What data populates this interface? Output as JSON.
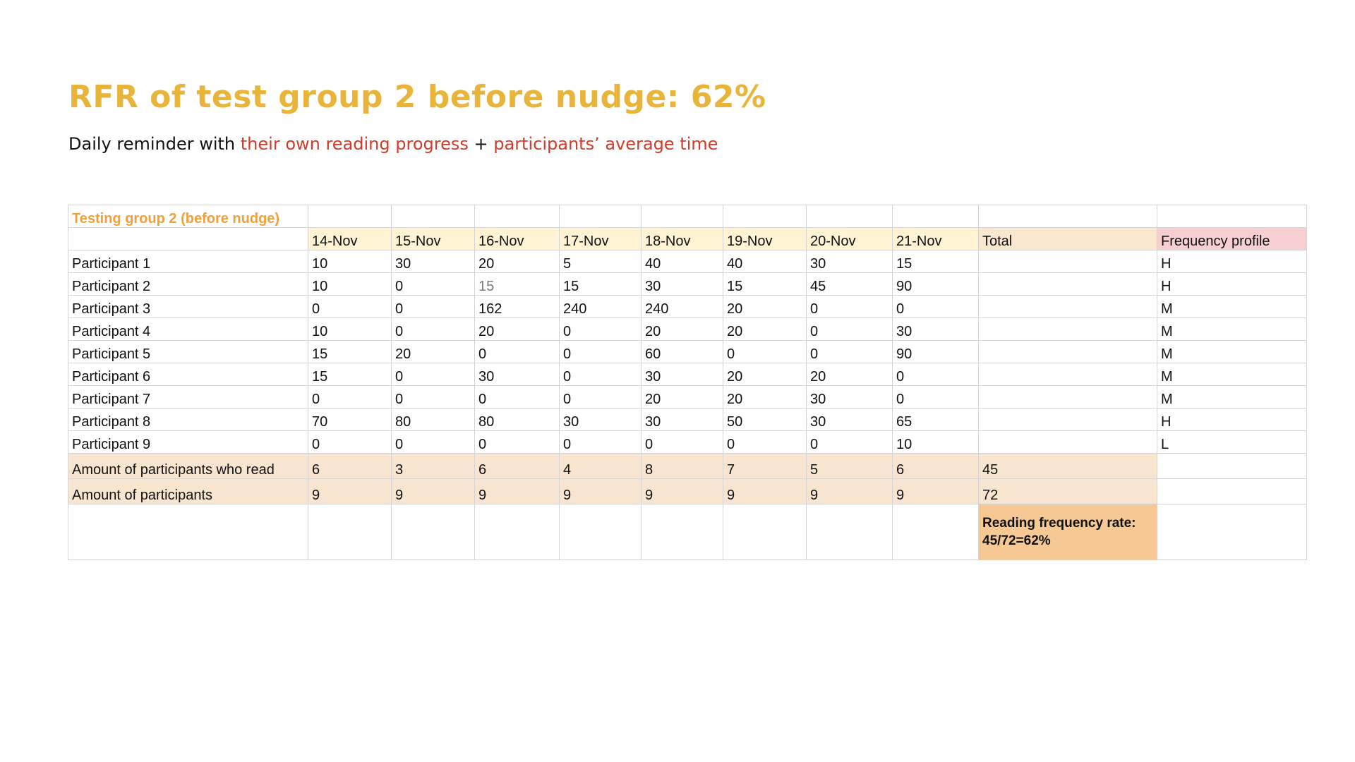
{
  "slide": {
    "title": "RFR of test group 2 before nudge: 62%",
    "subtitle": {
      "prefix": "Daily reminder with ",
      "highlight1": "their own reading progress",
      "middle": " + ",
      "highlight2": "participants’ average time"
    }
  },
  "sheet": {
    "title": "Testing group 2 (before nudge)",
    "headers": {
      "dates": [
        "14-Nov",
        "15-Nov",
        "16-Nov",
        "17-Nov",
        "18-Nov",
        "19-Nov",
        "20-Nov",
        "21-Nov"
      ],
      "total": "Total",
      "frequency_profile": "Frequency profile"
    },
    "participants": [
      {
        "name": "Participant 1",
        "values": [
          "10",
          "30",
          "20",
          "5",
          "40",
          "40",
          "30",
          "15"
        ],
        "profile": "H"
      },
      {
        "name": "Participant 2",
        "values": [
          "10",
          "0",
          "15",
          "15",
          "30",
          "15",
          "45",
          "90"
        ],
        "profile": "H"
      },
      {
        "name": "Participant 3",
        "values": [
          "0",
          "0",
          "162",
          "240",
          "240",
          "20",
          "0",
          "0"
        ],
        "profile": "M"
      },
      {
        "name": "Participant 4",
        "values": [
          "10",
          "0",
          "20",
          "0",
          "20",
          "20",
          "0",
          "30"
        ],
        "profile": "M"
      },
      {
        "name": "Participant 5",
        "values": [
          "15",
          "20",
          "0",
          "0",
          "60",
          "0",
          "0",
          "90"
        ],
        "profile": "M"
      },
      {
        "name": "Participant 6",
        "values": [
          "15",
          "0",
          "30",
          "0",
          "30",
          "20",
          "20",
          "0"
        ],
        "profile": "M"
      },
      {
        "name": "Participant 7",
        "values": [
          "0",
          "0",
          "0",
          "0",
          "20",
          "20",
          "30",
          "0"
        ],
        "profile": "M"
      },
      {
        "name": "Participant 8",
        "values": [
          "70",
          "80",
          "80",
          "30",
          "30",
          "50",
          "30",
          "65"
        ],
        "profile": "H"
      },
      {
        "name": "Participant 9",
        "values": [
          "0",
          "0",
          "0",
          "0",
          "0",
          "0",
          "0",
          "10"
        ],
        "profile": "L"
      }
    ],
    "readers_row": {
      "label": "Amount of participants who read",
      "values": [
        "6",
        "3",
        "6",
        "4",
        "8",
        "7",
        "5",
        "6"
      ],
      "total": "45"
    },
    "participants_row": {
      "label": "Amount of participants",
      "values": [
        "9",
        "9",
        "9",
        "9",
        "9",
        "9",
        "9",
        "9"
      ],
      "total": "72"
    },
    "rate": {
      "line1": "Reading frequency rate:",
      "line2": "45/72=62%"
    }
  }
}
